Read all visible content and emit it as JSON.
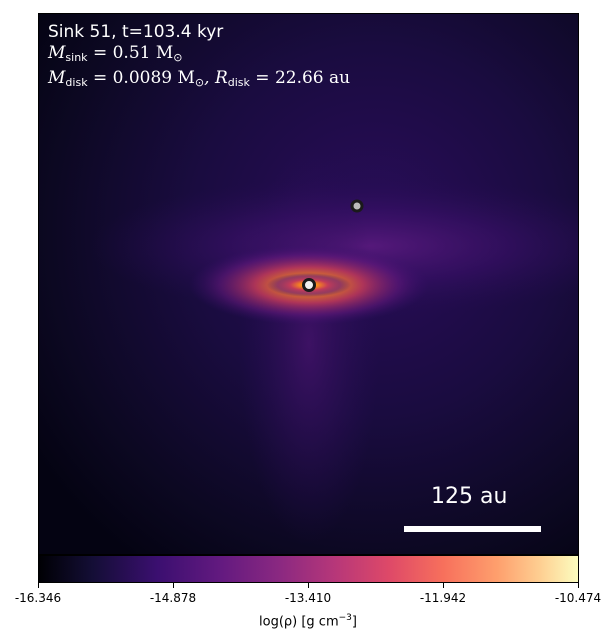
{
  "info": {
    "line1": "Sink 51, t=103.4 kyr",
    "sink_mass_label": "M",
    "sink_mass_sub": "sink",
    "sink_mass_value": " = 0.51 M",
    "sink_mass_unit_sub": "⊙",
    "disk_mass_label": "M",
    "disk_mass_sub": "disk",
    "disk_mass_value": " = 0.0089 M",
    "disk_mass_unit_sub": "⊙",
    "disk_radius_label": ", R",
    "disk_radius_sub": "disk",
    "disk_radius_value": " = 22.66 au"
  },
  "scalebar": {
    "label": "125 au"
  },
  "colorbar": {
    "colormap": "inferno",
    "ticks": [
      "-16.346",
      "-14.878",
      "-13.410",
      "-11.942",
      "-10.474"
    ],
    "label_prefix": "log(ρ) [g cm",
    "label_exp": "−3",
    "label_suffix": "]"
  }
}
